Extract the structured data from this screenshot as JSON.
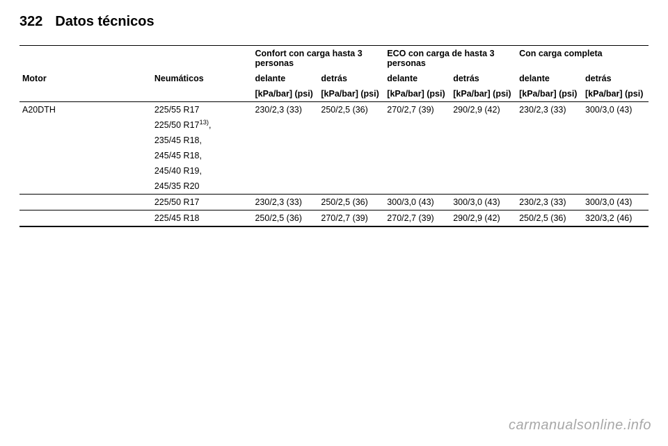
{
  "page": {
    "number": "322",
    "section": "Datos técnicos"
  },
  "watermark": "carmanualsonline.info",
  "table": {
    "header": {
      "group_comfort": "Confort con carga hasta 3 personas",
      "group_eco": "ECO con carga de hasta 3 personas",
      "group_full": "Con carga completa",
      "motor": "Motor",
      "tyres": "Neumáticos",
      "front": "delante",
      "rear": "detrás",
      "unit": "[kPa/bar] (psi)"
    },
    "motor": "A20DTH",
    "footnote_marker": "13)",
    "tyre_block1": [
      "225/55 R17",
      "225/50 R17",
      "235/45 R18,",
      "245/45 R18,",
      "245/40 R19,",
      "245/35 R20"
    ],
    "row1": {
      "cf": "230/2,3 (33)",
      "cr": "250/2,5 (36)",
      "ef": "270/2,7 (39)",
      "er": "290/2,9 (42)",
      "ff": "230/2,3 (33)",
      "fr": "300/3,0 (43)"
    },
    "row2": {
      "tyre": "225/50 R17",
      "cf": "230/2,3 (33)",
      "cr": "250/2,5 (36)",
      "ef": "300/3,0 (43)",
      "er": "300/3,0 (43)",
      "ff": "230/2,3 (33)",
      "fr": "300/3,0 (43)"
    },
    "row3": {
      "tyre": "225/45 R18",
      "cf": "250/2,5 (36)",
      "cr": "270/2,7 (39)",
      "ef": "270/2,7 (39)",
      "er": "290/2,9 (42)",
      "ff": "250/2,5 (36)",
      "fr": "320/3,2 (46)"
    }
  }
}
